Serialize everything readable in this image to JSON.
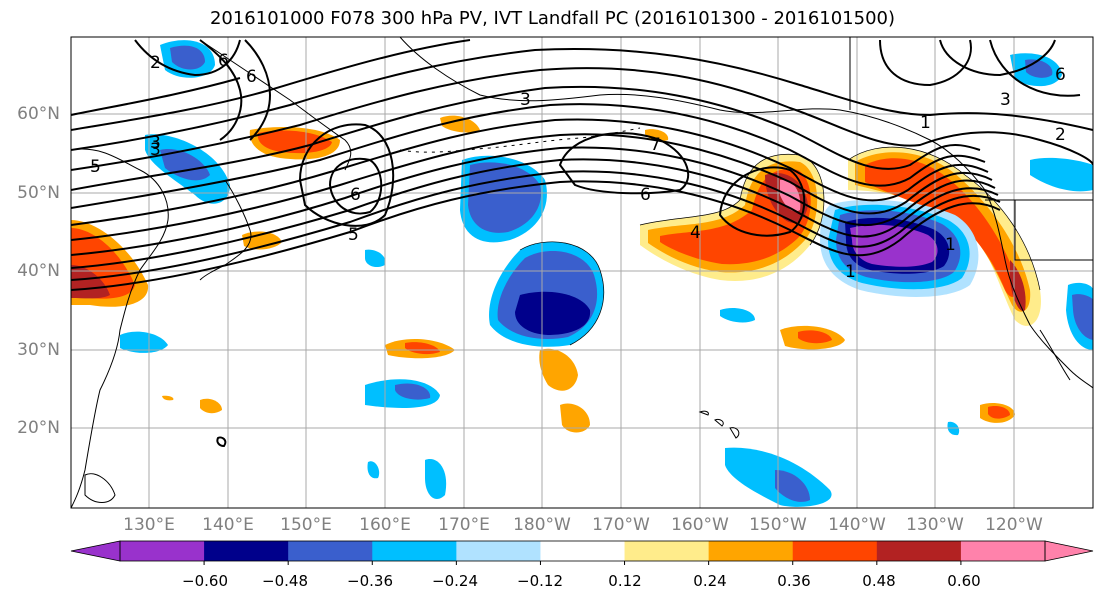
{
  "title": "2016101000 F078 300 hPa PV, IVT Landfall PC (2016101300 - 2016101500)",
  "lat_labels": [
    "60°N",
    "50°N",
    "40°N",
    "30°N",
    "20°N"
  ],
  "lon_labels": [
    "130°E",
    "140°E",
    "150°E",
    "160°E",
    "170°E",
    "180°W",
    "170°W",
    "160°W",
    "150°W",
    "140°W",
    "130°W",
    "120°W"
  ],
  "contour_labels": [
    "3",
    "2",
    "5",
    "6",
    "6",
    "5",
    "3",
    "7",
    "6",
    "1",
    "1",
    "2",
    "3",
    "6",
    "4",
    "3",
    "1",
    "6"
  ],
  "colorbar": {
    "tick_labels": [
      "−0.60",
      "−0.48",
      "−0.36",
      "−0.24",
      "−0.12",
      "0.12",
      "0.24",
      "0.36",
      "0.48",
      "0.60"
    ],
    "colors": [
      "#9932cc",
      "#00008b",
      "#3a5fcd",
      "#00bfff",
      "#b0e2ff",
      "#ffffff",
      "#ffec8b",
      "#ffa500",
      "#ff4500",
      "#b22222",
      "#ff82ab",
      "#ff82ab"
    ]
  },
  "colors": {
    "coast": "#000000",
    "grid": "#a9a9a9",
    "contour": "#000000"
  }
}
